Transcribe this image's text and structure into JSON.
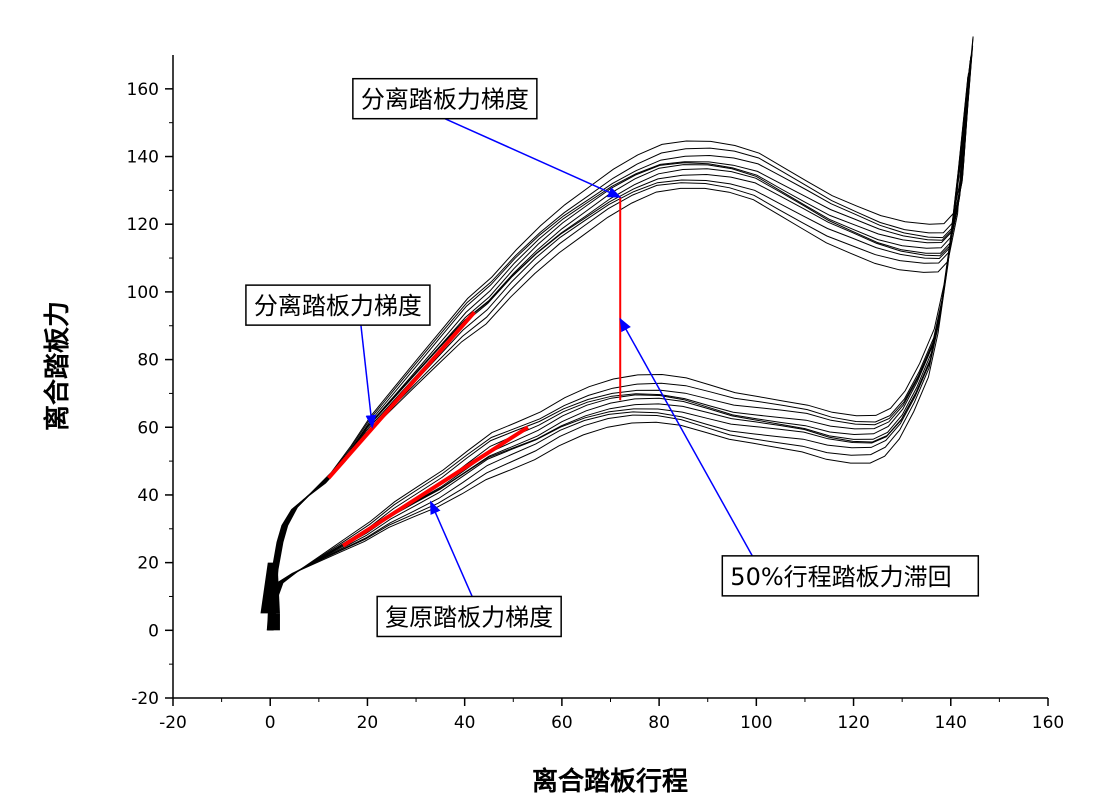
{
  "chart_data": {
    "type": "line",
    "title": "",
    "xlabel": "离合踏板行程",
    "ylabel": "离合踏板力",
    "xlim": [
      -20,
      160
    ],
    "ylim": [
      -20,
      170
    ],
    "x_ticks": [
      -20,
      0,
      20,
      40,
      60,
      80,
      100,
      120,
      140,
      160
    ],
    "y_ticks": [
      -20,
      0,
      20,
      40,
      60,
      80,
      100,
      120,
      140,
      160
    ],
    "grid": false,
    "legend": "none",
    "colors": {
      "curves": "#000000",
      "highlight": "#ff0000",
      "arrow": "#0000ff"
    },
    "series": [
      {
        "points": [
          [
            0,
            0
          ],
          [
            0.5,
            10
          ],
          [
            1,
            18
          ],
          [
            2,
            26
          ],
          [
            3,
            31
          ],
          [
            5,
            36
          ],
          [
            8,
            40
          ],
          [
            12,
            45
          ],
          [
            16,
            52
          ],
          [
            20,
            60
          ],
          [
            25,
            68
          ],
          [
            30,
            76
          ],
          [
            35,
            84
          ],
          [
            40,
            92
          ],
          [
            45,
            98
          ],
          [
            50,
            106
          ],
          [
            55,
            113
          ],
          [
            60,
            119
          ],
          [
            65,
            124
          ],
          [
            70,
            129
          ],
          [
            75,
            133
          ],
          [
            80,
            136
          ],
          [
            85,
            137
          ],
          [
            90,
            137
          ],
          [
            95,
            136
          ],
          [
            100,
            134
          ],
          [
            105,
            130
          ],
          [
            110,
            126
          ],
          [
            115,
            122
          ],
          [
            120,
            119
          ],
          [
            125,
            116
          ],
          [
            130,
            114
          ],
          [
            135,
            113
          ],
          [
            138,
            113
          ],
          [
            140,
            116
          ],
          [
            142,
            130
          ],
          [
            143,
            150
          ],
          [
            144,
            168
          ]
        ]
      },
      {
        "points": [
          [
            144,
            168
          ],
          [
            142,
            140
          ],
          [
            140,
            115
          ],
          [
            138,
            95
          ],
          [
            136,
            82
          ],
          [
            133,
            72
          ],
          [
            130,
            64
          ],
          [
            127,
            59
          ],
          [
            124,
            57
          ],
          [
            120,
            57
          ],
          [
            115,
            58
          ],
          [
            110,
            60
          ],
          [
            105,
            61
          ],
          [
            100,
            62
          ],
          [
            95,
            63
          ],
          [
            90,
            65
          ],
          [
            85,
            67
          ],
          [
            80,
            68
          ],
          [
            75,
            68
          ],
          [
            70,
            67
          ],
          [
            65,
            65
          ],
          [
            60,
            62
          ],
          [
            55,
            58
          ],
          [
            50,
            55
          ],
          [
            45,
            52
          ],
          [
            40,
            47
          ],
          [
            35,
            42
          ],
          [
            30,
            38
          ],
          [
            25,
            34
          ],
          [
            20,
            29
          ],
          [
            15,
            25
          ],
          [
            10,
            21
          ],
          [
            5,
            17
          ],
          [
            2,
            14
          ],
          [
            1,
            10
          ],
          [
            0,
            0
          ]
        ]
      }
    ],
    "gradient_lines": [
      {
        "start": [
          12,
          45
        ],
        "end": [
          42,
          94
        ]
      },
      {
        "start": [
          15,
          25
        ],
        "end": [
          53,
          60
        ]
      }
    ],
    "hysteresis_line": {
      "x": 72,
      "y_low": 68,
      "y_high": 128
    },
    "annotations": [
      {
        "text": "分离踏板力梯度",
        "box": [
          17,
          163
        ],
        "target": [
          72,
          128
        ]
      },
      {
        "text": "分离踏板力梯度",
        "box": [
          -5,
          102
        ],
        "target": [
          21,
          60
        ]
      },
      {
        "text": "复原踏板力梯度",
        "box": [
          22,
          10
        ],
        "target": [
          33,
          38
        ]
      },
      {
        "text": "50%行程踏板力滞回",
        "box": [
          93,
          22
        ],
        "target": [
          72,
          92
        ]
      }
    ]
  }
}
